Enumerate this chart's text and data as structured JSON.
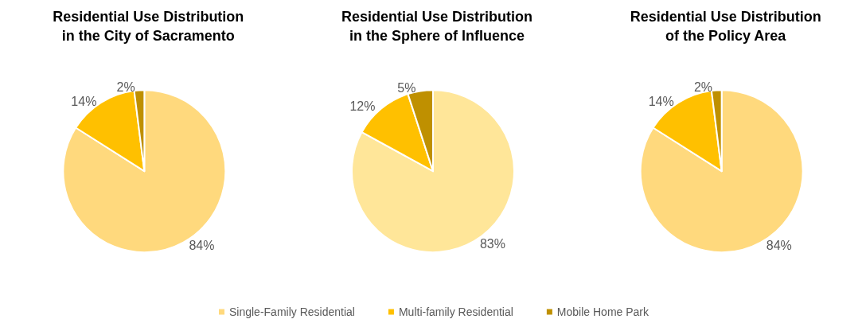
{
  "chart_data": [
    {
      "type": "pie",
      "title": "Residential Use Distribution\nin the City of Sacramento",
      "categories": [
        "Single-Family Residential",
        "Multi-family Residential",
        "Mobile Home Park"
      ],
      "values": [
        84,
        14,
        2
      ],
      "value_labels": [
        "84%",
        "14%",
        "2%"
      ],
      "colors": [
        "#ffd97d",
        "#ffc000",
        "#bf9000"
      ],
      "legend": "bottom"
    },
    {
      "type": "pie",
      "title": "Residential Use Distribution\nin the Sphere of Influence",
      "categories": [
        null,
        null,
        null
      ],
      "values": [
        83,
        12,
        5
      ],
      "value_labels": [
        "83%",
        "12%",
        "5%"
      ],
      "colors": [
        "#ffe699",
        "#ffc000",
        "#bf9000"
      ]
    },
    {
      "type": "pie",
      "title": "Residential Use Distribution\nof the Policy Area",
      "categories": [
        null,
        null,
        null
      ],
      "values": [
        84,
        14,
        2
      ],
      "value_labels": [
        "84%",
        "14%",
        "2%"
      ],
      "colors": [
        "#ffd97d",
        "#ffc000",
        "#bf9000"
      ]
    }
  ]
}
